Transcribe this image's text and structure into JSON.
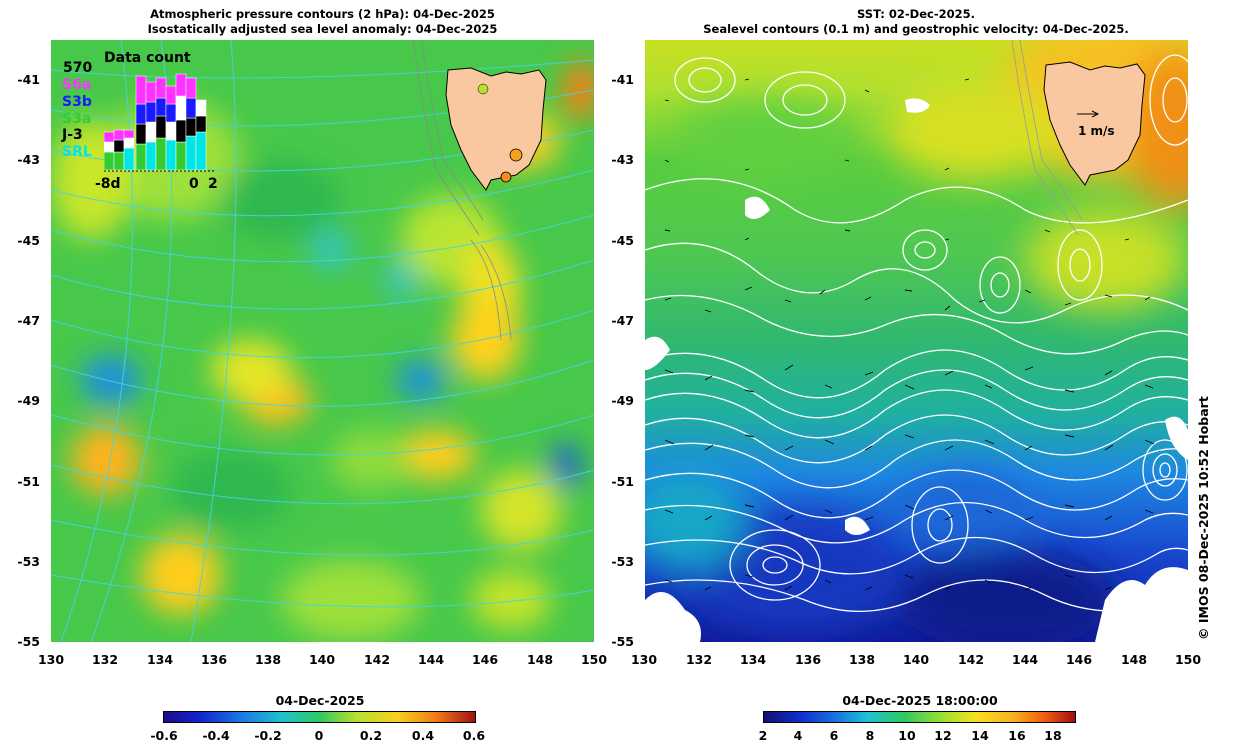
{
  "left_panel": {
    "title_line1": "Atmospheric pressure contours (2 hPa): 04-Dec-2025",
    "title_line2": "Isostatically adjusted sea level anomaly: 04-Dec-2025",
    "y_ticks": [
      "-41",
      "-43",
      "-45",
      "-47",
      "-49",
      "-51",
      "-53",
      "-55"
    ],
    "x_ticks": [
      "130",
      "132",
      "134",
      "136",
      "138",
      "140",
      "142",
      "144",
      "146",
      "148",
      "150"
    ],
    "colorbar_title": "04-Dec-2025",
    "colorbar_ticks": [
      "-0.6",
      "-0.4",
      "-0.2",
      "0",
      "0.2",
      "0.4",
      "0.6"
    ]
  },
  "right_panel": {
    "title_line1": "SST: 02-Dec-2025.",
    "title_line2": "Sealevel contours (0.1 m) and geostrophic velocity: 04-Dec-2025.",
    "y_ticks": [
      "-41",
      "-43",
      "-45",
      "-47",
      "-49",
      "-51",
      "-53",
      "-55"
    ],
    "x_ticks": [
      "130",
      "132",
      "134",
      "136",
      "138",
      "140",
      "142",
      "144",
      "146",
      "148",
      "150"
    ],
    "velocity_scale_label": "1 m/s",
    "colorbar_title": "04-Dec-2025 18:00:00",
    "colorbar_ticks": [
      "2",
      "4",
      "6",
      "8",
      "10",
      "12",
      "14",
      "16",
      "18"
    ]
  },
  "inset": {
    "title": "Data count",
    "max_count": "570",
    "missions": [
      "S6a",
      "S3b",
      "S3a",
      "J-3",
      "SRL"
    ],
    "mission_colors": [
      "#ff33ff",
      "#1a1aff",
      "#33cc33",
      "#000000",
      "#00e5e5"
    ],
    "x_labels": [
      "-8d",
      "0",
      "2"
    ]
  },
  "credit": "© IMOS 08-Dec-2025 10:52 Hobart",
  "colors": {
    "land": "#f9c8a0",
    "contour_left": "#44d3e6",
    "contour_right": "#ffffff"
  }
}
